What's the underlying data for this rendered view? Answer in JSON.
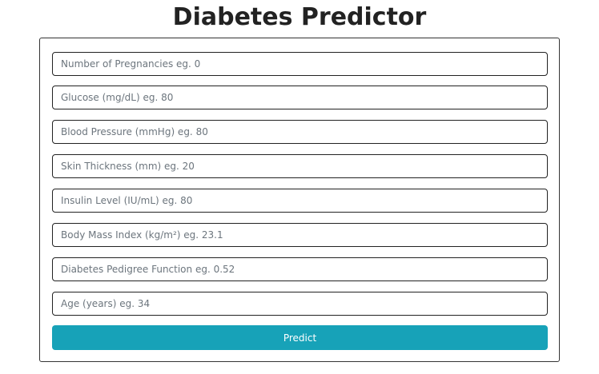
{
  "page": {
    "title": "Diabetes Predictor"
  },
  "form": {
    "fields": [
      {
        "placeholder": "Number of Pregnancies eg. 0",
        "value": ""
      },
      {
        "placeholder": "Glucose (mg/dL) eg. 80",
        "value": ""
      },
      {
        "placeholder": "Blood Pressure (mmHg) eg. 80",
        "value": ""
      },
      {
        "placeholder": "Skin Thickness (mm) eg. 20",
        "value": ""
      },
      {
        "placeholder": "Insulin Level (IU/mL) eg. 80",
        "value": ""
      },
      {
        "placeholder": "Body Mass Index (kg/m²) eg. 23.1",
        "value": ""
      },
      {
        "placeholder": "Diabetes Pedigree Function eg. 0.52",
        "value": ""
      },
      {
        "placeholder": "Age (years) eg. 34",
        "value": ""
      }
    ],
    "submit_label": "Predict"
  },
  "colors": {
    "button_bg": "#17a2b8",
    "button_text": "#ffffff",
    "border": "#222222",
    "title": "#222222"
  }
}
